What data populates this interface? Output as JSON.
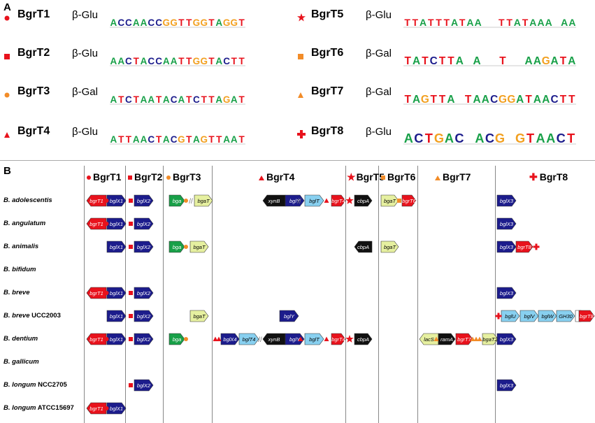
{
  "panel_a_label": "A",
  "panel_b_label": "B",
  "colors": {
    "red": "#e8121c",
    "orange": "#f28c28",
    "navy": "#1c1c8c",
    "green": "#18a048",
    "yellow": "#e6f0a0",
    "black": "#111111",
    "cyan": "#88d0f0",
    "white": "#ffffff",
    "grey": "#aaaaaa"
  },
  "motifs": [
    {
      "name": "BgrT1",
      "enzyme": "β-Glu",
      "marker": "red-circle",
      "logo": "ACCAACCGGTTGGTAGGT"
    },
    {
      "name": "BgrT2",
      "enzyme": "β-Glu",
      "marker": "red-square",
      "logo": "AACTACCAATTGGTACTT"
    },
    {
      "name": "BgrT3",
      "enzyme": "β-Gal",
      "marker": "orange-circle",
      "logo": "ATCTAATACATCTTAGAT"
    },
    {
      "name": "BgrT4",
      "enzyme": "β-Glu",
      "marker": "red-triangle",
      "logo": "ATTAACTACGTAGTTAAT"
    },
    {
      "name": "BgrT5",
      "enzyme": "β-Glu",
      "marker": "red-star",
      "logo": "TTATTTATAA  TTATAAA AA"
    },
    {
      "name": "BgrT6",
      "enzyme": "β-Gal",
      "marker": "orange-square",
      "logo": "TATCTTA A  T  AAGATA"
    },
    {
      "name": "BgrT7",
      "enzyme": "β-Gal",
      "marker": "orange-triangle",
      "logo": "TAGTTA TAACGGATAACTT"
    },
    {
      "name": "BgrT8",
      "enzyme": "β-Glu",
      "marker": "red-cross",
      "logo": "ACTGAC ACG GTAACT"
    }
  ],
  "columns": [
    "BgrT1",
    "BgrT2",
    "BgrT3",
    "BgrT4",
    "BgrT5",
    "BgrT6",
    "BgrT7",
    "BgrT8"
  ],
  "species": [
    {
      "name": "B. adolescentis",
      "strain": ""
    },
    {
      "name": "B. angulatum",
      "strain": ""
    },
    {
      "name": "B. animalis",
      "strain": ""
    },
    {
      "name": "B. bifidum",
      "strain": ""
    },
    {
      "name": "B. breve",
      "strain": ""
    },
    {
      "name": "B. breve",
      "strain": " UCC2003"
    },
    {
      "name": "B. dentium",
      "strain": ""
    },
    {
      "name": "B. gallicum",
      "strain": ""
    },
    {
      "name": "B. longum",
      "strain": " NCC2705"
    },
    {
      "name": "B. longum",
      "strain": " ATCC15697"
    }
  ],
  "genes": [
    {
      "row": 0,
      "label": "bgrT1",
      "color": "red",
      "dir": "left"
    },
    {
      "row": 0,
      "label": "bglX1",
      "color": "navy",
      "dir": "right"
    },
    {
      "row": 0,
      "label": "bglX2",
      "color": "navy",
      "dir": "right"
    },
    {
      "row": 0,
      "label": "bga",
      "color": "green",
      "dir": "right"
    },
    {
      "row": 0,
      "label": "bgaT",
      "color": "yellow",
      "dir": "right"
    },
    {
      "row": 0,
      "label": "xynB",
      "color": "black",
      "dir": "left"
    },
    {
      "row": 0,
      "label": "bglY",
      "color": "navy",
      "dir": "right"
    },
    {
      "row": 0,
      "label": "bglT",
      "color": "cyan",
      "dir": "right"
    },
    {
      "row": 0,
      "label": "bgrT4",
      "color": "red",
      "dir": "right"
    },
    {
      "row": 0,
      "label": "cbpA",
      "color": "black",
      "dir": "right"
    },
    {
      "row": 0,
      "label": "bgaT",
      "color": "yellow",
      "dir": "right"
    },
    {
      "row": 0,
      "label": "bgrT6",
      "color": "red",
      "dir": "right"
    },
    {
      "row": 0,
      "label": "bglX3",
      "color": "navy",
      "dir": "right"
    },
    {
      "row": 1,
      "label": "bgrT1",
      "color": "red",
      "dir": "left"
    },
    {
      "row": 1,
      "label": "bglX1",
      "color": "navy",
      "dir": "right"
    },
    {
      "row": 1,
      "label": "bglX2",
      "color": "navy",
      "dir": "right"
    },
    {
      "row": 1,
      "label": "bglX3",
      "color": "navy",
      "dir": "right"
    },
    {
      "row": 2,
      "label": "bglX1",
      "color": "navy",
      "dir": "right"
    },
    {
      "row": 2,
      "label": "bglX2",
      "color": "navy",
      "dir": "right"
    },
    {
      "row": 2,
      "label": "bga",
      "color": "green",
      "dir": "right"
    },
    {
      "row": 2,
      "label": "bgaT",
      "color": "yellow",
      "dir": "right"
    },
    {
      "row": 2,
      "label": "cbpA",
      "color": "black",
      "dir": "left"
    },
    {
      "row": 2,
      "label": "bgaT",
      "color": "yellow",
      "dir": "right"
    },
    {
      "row": 2,
      "label": "bglX3",
      "color": "navy",
      "dir": "right"
    },
    {
      "row": 2,
      "label": "bgrT8",
      "color": "red",
      "dir": "right"
    },
    {
      "row": 4,
      "label": "bgrT1",
      "color": "red",
      "dir": "left"
    },
    {
      "row": 4,
      "label": "bglX1",
      "color": "navy",
      "dir": "right"
    },
    {
      "row": 4,
      "label": "bglX2",
      "color": "navy",
      "dir": "right"
    },
    {
      "row": 4,
      "label": "bglX3",
      "color": "navy",
      "dir": "right"
    },
    {
      "row": 5,
      "label": "bglX1",
      "color": "navy",
      "dir": "right"
    },
    {
      "row": 5,
      "label": "bglX2",
      "color": "navy",
      "dir": "right"
    },
    {
      "row": 5,
      "label": "bgaT",
      "color": "yellow",
      "dir": "right"
    },
    {
      "row": 5,
      "label": "bglY",
      "color": "navy",
      "dir": "right"
    },
    {
      "row": 5,
      "label": "bglU",
      "color": "cyan",
      "dir": "right"
    },
    {
      "row": 5,
      "label": "bglV",
      "color": "cyan",
      "dir": "right"
    },
    {
      "row": 5,
      "label": "bglW",
      "color": "cyan",
      "dir": "right"
    },
    {
      "row": 5,
      "label": "GH30",
      "color": "cyan",
      "dir": "right"
    },
    {
      "row": 5,
      "label": "",
      "color": "white",
      "dir": "right"
    },
    {
      "row": 5,
      "label": "bgrT8",
      "color": "red",
      "dir": "right"
    },
    {
      "row": 6,
      "label": "bgrT1",
      "color": "red",
      "dir": "left"
    },
    {
      "row": 6,
      "label": "bglX1",
      "color": "navy",
      "dir": "right"
    },
    {
      "row": 6,
      "label": "bglX2",
      "color": "navy",
      "dir": "right"
    },
    {
      "row": 6,
      "label": "bga",
      "color": "green",
      "dir": "right"
    },
    {
      "row": 6,
      "label": "bglX4",
      "color": "navy",
      "dir": "right"
    },
    {
      "row": 6,
      "label": "bglT4",
      "color": "cyan",
      "dir": "right"
    },
    {
      "row": 6,
      "label": "xynB",
      "color": "black",
      "dir": "left"
    },
    {
      "row": 6,
      "label": "bglY",
      "color": "navy",
      "dir": "right"
    },
    {
      "row": 6,
      "label": "bglT",
      "color": "cyan",
      "dir": "right"
    },
    {
      "row": 6,
      "label": "bgrT4",
      "color": "red",
      "dir": "right"
    },
    {
      "row": 6,
      "label": "cbpA",
      "color": "black",
      "dir": "right"
    },
    {
      "row": 6,
      "label": "lacS",
      "color": "yellow",
      "dir": "left"
    },
    {
      "row": 6,
      "label": "ramA",
      "color": "black",
      "dir": "right"
    },
    {
      "row": 6,
      "label": "bgrT7",
      "color": "red",
      "dir": "right"
    },
    {
      "row": 6,
      "label": "bgaT2",
      "color": "yellow",
      "dir": "right"
    },
    {
      "row": 6,
      "label": "bglX3",
      "color": "navy",
      "dir": "right"
    },
    {
      "row": 8,
      "label": "bglX2",
      "color": "navy",
      "dir": "right"
    },
    {
      "row": 8,
      "label": "bglX3",
      "color": "navy",
      "dir": "right"
    },
    {
      "row": 9,
      "label": "bgrT1",
      "color": "red",
      "dir": "left"
    },
    {
      "row": 9,
      "label": "bglX1",
      "color": "navy",
      "dir": "right"
    }
  ]
}
